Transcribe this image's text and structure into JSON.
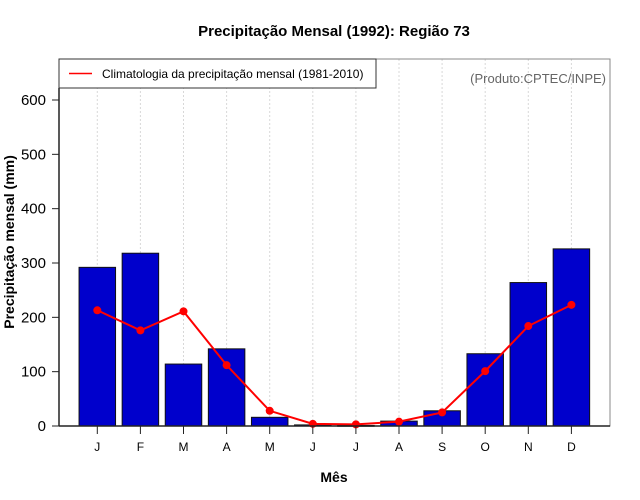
{
  "chart_data": {
    "type": "bar",
    "title": "Precipitação Mensal (1992): Região 73",
    "xlabel": "Mês",
    "ylabel": "Precipitação mensal (mm)",
    "ylim": [
      0,
      680
    ],
    "yticks": [
      0,
      100,
      200,
      300,
      400,
      500,
      600
    ],
    "categories": [
      "J",
      "F",
      "M",
      "A",
      "M",
      "J",
      "J",
      "A",
      "S",
      "O",
      "N",
      "D"
    ],
    "grid": "vertical dotted at each month",
    "series": [
      {
        "name": "Precipitação mensal (1992)",
        "type": "bar",
        "color": "#0000CC",
        "values": [
          292,
          318,
          114,
          142,
          16,
          2,
          1,
          9,
          28,
          133,
          264,
          326
        ]
      },
      {
        "name": "Climatologia da precipitação mensal (1981-2010)",
        "type": "line",
        "color": "#FF0000",
        "values": [
          213,
          176,
          211,
          112,
          28,
          4,
          3,
          8,
          25,
          101,
          184,
          223
        ]
      }
    ],
    "legend": {
      "placement": "top-left",
      "entries": [
        "Climatologia da precipitação mensal (1981-2010)"
      ]
    },
    "annotation": "(Produto:CPTEC/INPE)"
  }
}
